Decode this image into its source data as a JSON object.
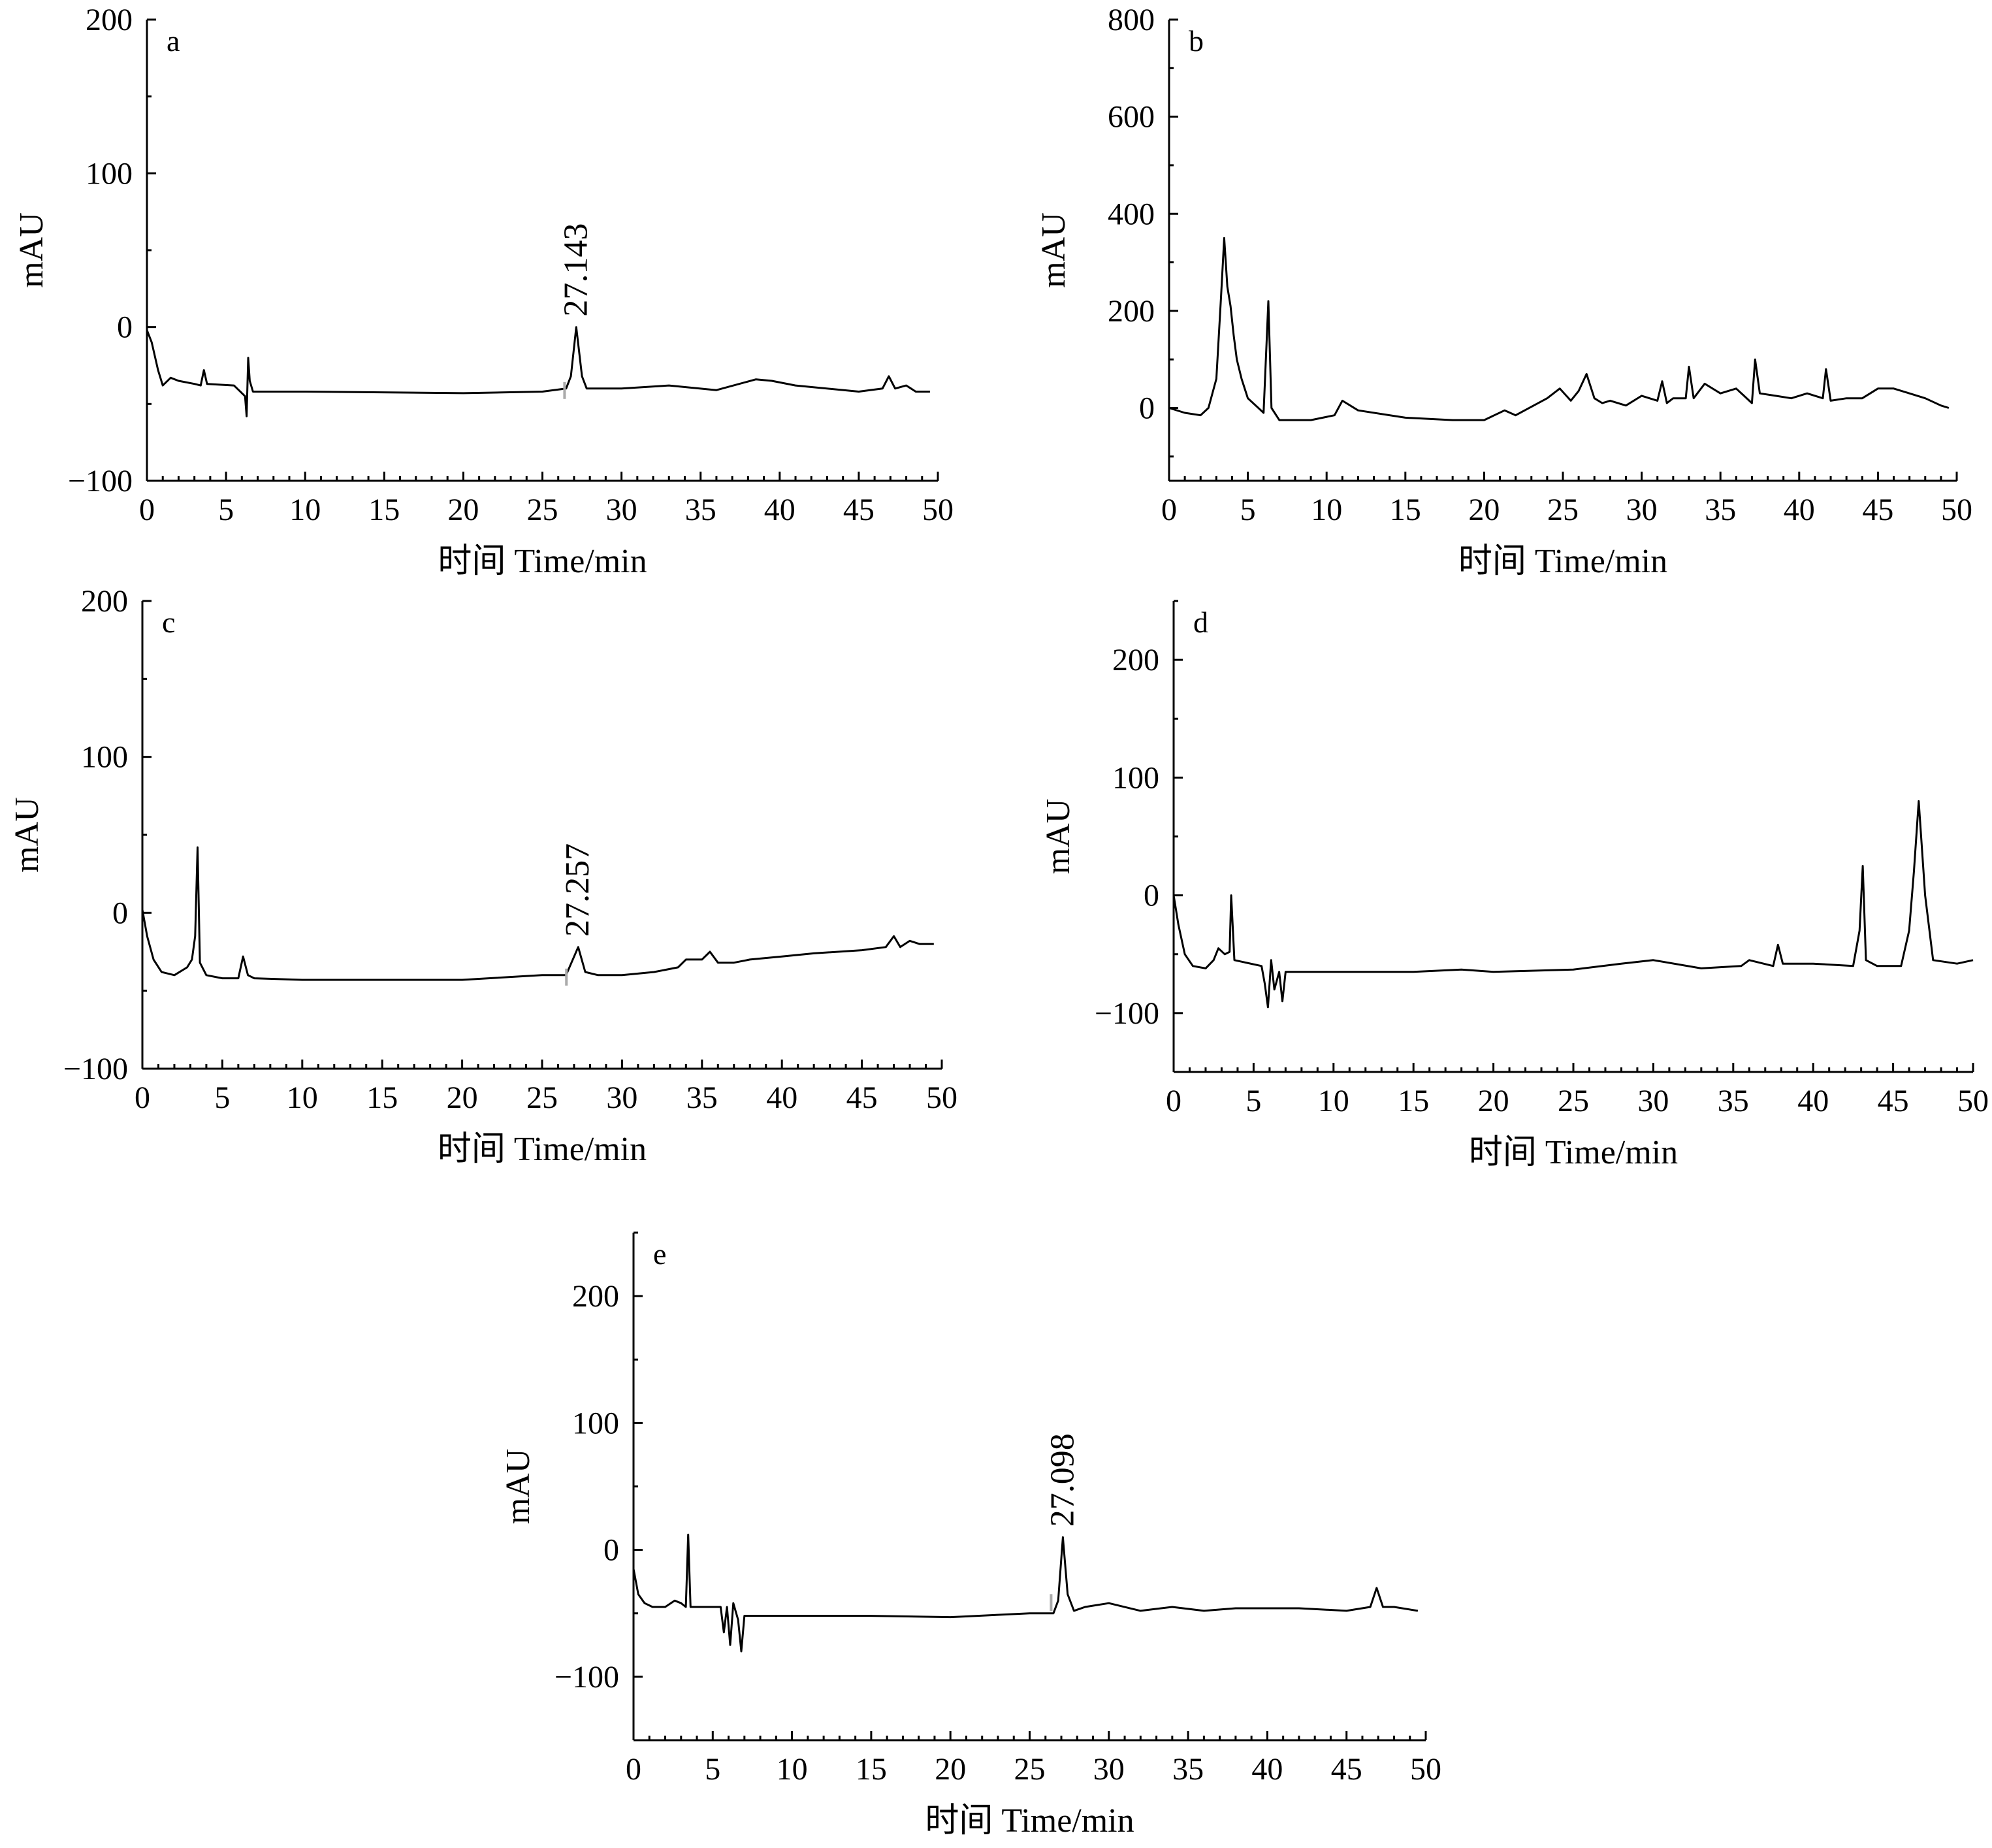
{
  "chart_data": [
    {
      "type": "line",
      "panel_label": "a",
      "xlabel": "时间 Time/min",
      "ylabel": "mAU",
      "xlim": [
        0,
        50
      ],
      "ylim": [
        -100,
        200
      ],
      "x_ticks": [
        0,
        5,
        10,
        15,
        20,
        25,
        30,
        35,
        40,
        45,
        50
      ],
      "y_ticks": [
        -100,
        0,
        100,
        200
      ],
      "x_tick_labels": [
        "0",
        "5",
        "10",
        "15",
        "20",
        "25",
        "30",
        "35",
        "40",
        "45",
        "50"
      ],
      "y_tick_labels": [
        "−100",
        "0",
        "100",
        "200"
      ],
      "series": [
        {
          "x": [
            0,
            0.3,
            0.7,
            1.0,
            1.5,
            2.0,
            3.0,
            3.4,
            3.6,
            3.8,
            5.5,
            6.2,
            6.3,
            6.4,
            6.5,
            6.7,
            7.0,
            10,
            20,
            25,
            26.5,
            26.8,
            27.14,
            27.5,
            27.8,
            28.5,
            30,
            33,
            36,
            38.5,
            39.5,
            41,
            45,
            46.5,
            46.9,
            47.3,
            48,
            48.6,
            49.5
          ],
          "y": [
            -2,
            -10,
            -28,
            -38,
            -33,
            -35,
            -37,
            -38,
            -28,
            -37,
            -38,
            -45,
            -58,
            -20,
            -35,
            -42,
            -42,
            -42,
            -43,
            -42,
            -40,
            -32,
            0,
            -32,
            -40,
            -40,
            -40,
            -38,
            -41,
            -34,
            -35,
            -38,
            -42,
            -40,
            -32,
            -40,
            -38,
            -42,
            -42
          ]
        }
      ],
      "annotations": [
        {
          "x": 27.143,
          "y": 0,
          "label": "27.143"
        }
      ]
    },
    {
      "type": "line",
      "panel_label": "b",
      "xlabel": "时间 Time/min",
      "ylabel": "mAU",
      "xlim": [
        0,
        50
      ],
      "ylim": [
        -150,
        800
      ],
      "x_ticks": [
        0,
        5,
        10,
        15,
        20,
        25,
        30,
        35,
        40,
        45,
        50
      ],
      "y_ticks": [
        0,
        200,
        400,
        600,
        800
      ],
      "x_tick_labels": [
        "0",
        "5",
        "10",
        "15",
        "20",
        "25",
        "30",
        "35",
        "40",
        "45",
        "50"
      ],
      "y_tick_labels": [
        "0",
        "200",
        "400",
        "600",
        "800"
      ],
      "series": [
        {
          "x": [
            0,
            1.0,
            2.0,
            2.5,
            3.0,
            3.3,
            3.5,
            3.7,
            3.9,
            4.1,
            4.3,
            4.6,
            5.0,
            5.5,
            6.0,
            6.3,
            6.5,
            7.0,
            9.0,
            10.5,
            11.0,
            12.0,
            15,
            18,
            20,
            21.3,
            22,
            24,
            24.8,
            25.5,
            26.0,
            26.5,
            27.0,
            27.5,
            28,
            29,
            30,
            31,
            31.3,
            31.6,
            32,
            32.8,
            33.0,
            33.3,
            34,
            35,
            36,
            37,
            37.2,
            37.5,
            38.5,
            39.5,
            40.5,
            41.5,
            41.7,
            42,
            43,
            44,
            45,
            46,
            47,
            48,
            49,
            49.5
          ],
          "y": [
            0,
            -10,
            -15,
            0,
            60,
            230,
            350,
            250,
            210,
            150,
            100,
            60,
            20,
            5,
            -10,
            220,
            0,
            -25,
            -25,
            -15,
            15,
            -5,
            -20,
            -25,
            -25,
            -5,
            -15,
            20,
            40,
            15,
            35,
            70,
            20,
            10,
            15,
            5,
            25,
            15,
            55,
            10,
            20,
            20,
            85,
            20,
            50,
            30,
            40,
            10,
            100,
            30,
            25,
            20,
            30,
            20,
            80,
            15,
            20,
            20,
            40,
            40,
            30,
            20,
            5,
            0
          ]
        }
      ],
      "annotations": []
    },
    {
      "type": "line",
      "panel_label": "c",
      "xlabel": "时间 Time/min",
      "ylabel": "mAU",
      "xlim": [
        0,
        50
      ],
      "ylim": [
        -100,
        200
      ],
      "x_ticks": [
        0,
        5,
        10,
        15,
        20,
        25,
        30,
        35,
        40,
        45,
        50
      ],
      "y_ticks": [
        -100,
        0,
        100,
        200
      ],
      "x_tick_labels": [
        "0",
        "5",
        "10",
        "15",
        "20",
        "25",
        "30",
        "35",
        "40",
        "45",
        "50"
      ],
      "y_tick_labels": [
        "−100",
        "0",
        "100",
        "200"
      ],
      "series": [
        {
          "x": [
            0,
            0.3,
            0.7,
            1.2,
            2.0,
            2.8,
            3.1,
            3.3,
            3.45,
            3.6,
            4.0,
            5.0,
            6.0,
            6.3,
            6.6,
            7.0,
            10,
            15,
            20,
            25,
            26.5,
            27.26,
            27.7,
            28.5,
            30,
            32,
            33.5,
            34,
            35,
            35.5,
            36,
            37,
            38,
            40,
            42,
            45,
            46.5,
            47,
            47.4,
            48,
            48.6,
            49.5
          ],
          "y": [
            2,
            -15,
            -30,
            -38,
            -40,
            -35,
            -30,
            -15,
            42,
            -32,
            -40,
            -42,
            -42,
            -28,
            -40,
            -42,
            -43,
            -43,
            -43,
            -40,
            -40,
            -22,
            -38,
            -40,
            -40,
            -38,
            -35,
            -30,
            -30,
            -25,
            -32,
            -32,
            -30,
            -28,
            -26,
            -24,
            -22,
            -15,
            -22,
            -18,
            -20,
            -20
          ]
        }
      ],
      "annotations": [
        {
          "x": 27.257,
          "y": -22,
          "label": "27.257"
        }
      ]
    },
    {
      "type": "line",
      "panel_label": "d",
      "xlabel": "时间 Time/min",
      "ylabel": "mAU",
      "xlim": [
        0,
        50
      ],
      "ylim": [
        -150,
        250
      ],
      "x_ticks": [
        0,
        5,
        10,
        15,
        20,
        25,
        30,
        35,
        40,
        45,
        50
      ],
      "y_ticks": [
        -100,
        0,
        100,
        200
      ],
      "x_tick_labels": [
        "0",
        "5",
        "10",
        "15",
        "20",
        "25",
        "30",
        "35",
        "40",
        "45",
        "50"
      ],
      "y_tick_labels": [
        "−100",
        "0",
        "100",
        "200"
      ],
      "series": [
        {
          "x": [
            0,
            0.3,
            0.7,
            1.2,
            2.0,
            2.5,
            2.8,
            3.2,
            3.5,
            3.6,
            3.8,
            5.5,
            5.7,
            5.9,
            6.1,
            6.3,
            6.6,
            6.8,
            7.0,
            10,
            15,
            18,
            20,
            25,
            28,
            30,
            33,
            35.5,
            36,
            37.5,
            37.8,
            38.1,
            40,
            42.5,
            42.9,
            43.1,
            43.3,
            44,
            45.5,
            46.0,
            46.3,
            46.6,
            47.0,
            47.5,
            49,
            50
          ],
          "y": [
            0,
            -25,
            -50,
            -60,
            -62,
            -55,
            -45,
            -50,
            -48,
            0,
            -55,
            -60,
            -75,
            -95,
            -55,
            -80,
            -65,
            -90,
            -65,
            -65,
            -65,
            -63,
            -65,
            -63,
            -58,
            -55,
            -62,
            -60,
            -55,
            -60,
            -42,
            -58,
            -58,
            -60,
            -30,
            25,
            -55,
            -60,
            -60,
            -30,
            20,
            80,
            0,
            -55,
            -58,
            -55
          ]
        }
      ],
      "annotations": []
    },
    {
      "type": "line",
      "panel_label": "e",
      "xlabel": "时间 Time/min",
      "ylabel": "mAU",
      "xlim": [
        0,
        50
      ],
      "ylim": [
        -150,
        250
      ],
      "x_ticks": [
        0,
        5,
        10,
        15,
        20,
        25,
        30,
        35,
        40,
        45,
        50
      ],
      "y_ticks": [
        -100,
        0,
        100,
        200
      ],
      "x_tick_labels": [
        "0",
        "5",
        "10",
        "15",
        "20",
        "25",
        "30",
        "35",
        "40",
        "45",
        "50"
      ],
      "y_tick_labels": [
        "−100",
        "0",
        "100",
        "200"
      ],
      "series": [
        {
          "x": [
            0,
            0.3,
            0.7,
            1.2,
            2.0,
            2.6,
            3.0,
            3.3,
            3.45,
            3.6,
            5.5,
            5.7,
            5.9,
            6.1,
            6.3,
            6.6,
            6.8,
            7.0,
            10,
            15,
            20,
            25,
            26.5,
            26.8,
            27.1,
            27.4,
            27.8,
            28.5,
            30,
            32,
            34,
            36,
            38,
            40,
            42,
            45,
            46.5,
            46.9,
            47.3,
            48,
            49.5
          ],
          "y": [
            -15,
            -35,
            -42,
            -45,
            -45,
            -40,
            -42,
            -45,
            12,
            -45,
            -45,
            -65,
            -45,
            -75,
            -42,
            -55,
            -80,
            -52,
            -52,
            -52,
            -53,
            -50,
            -50,
            -40,
            10,
            -35,
            -48,
            -45,
            -42,
            -48,
            -45,
            -48,
            -46,
            -46,
            -46,
            -48,
            -45,
            -30,
            -45,
            -45,
            -48
          ]
        }
      ],
      "annotations": [
        {
          "x": 27.098,
          "y": 10,
          "label": "27.098"
        }
      ]
    }
  ]
}
